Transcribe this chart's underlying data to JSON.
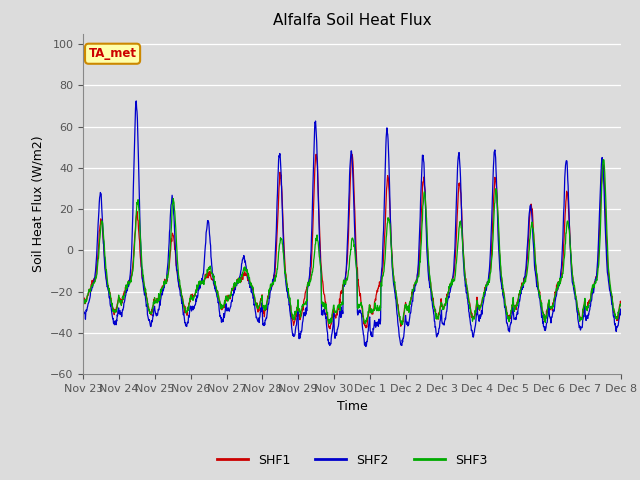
{
  "title": "Alfalfa Soil Heat Flux",
  "xlabel": "Time",
  "ylabel": "Soil Heat Flux (W/m2)",
  "ylim": [
    -60,
    105
  ],
  "yticks": [
    -60,
    -40,
    -20,
    0,
    20,
    40,
    60,
    80,
    100
  ],
  "plot_bg_color": "#dcdcdc",
  "fig_bg_color": "#dcdcdc",
  "annotation_text": "TA_met",
  "annotation_bg": "#ffffaa",
  "annotation_border": "#cc8800",
  "annotation_text_color": "#cc0000",
  "line_colors": {
    "SHF1": "#cc0000",
    "SHF2": "#0000cc",
    "SHF3": "#00aa00"
  },
  "legend_labels": [
    "SHF1",
    "SHF2",
    "SHF3"
  ],
  "xtick_labels": [
    "Nov 23",
    "Nov 24",
    "Nov 25",
    "Nov 26",
    "Nov 27",
    "Nov 28",
    "Nov 29",
    "Nov 30",
    "Dec 1",
    "Dec 2",
    "Dec 3",
    "Dec 4",
    "Dec 5",
    "Dec 6",
    "Dec 7",
    "Dec 8"
  ],
  "n_days": 15,
  "points_per_day": 96
}
